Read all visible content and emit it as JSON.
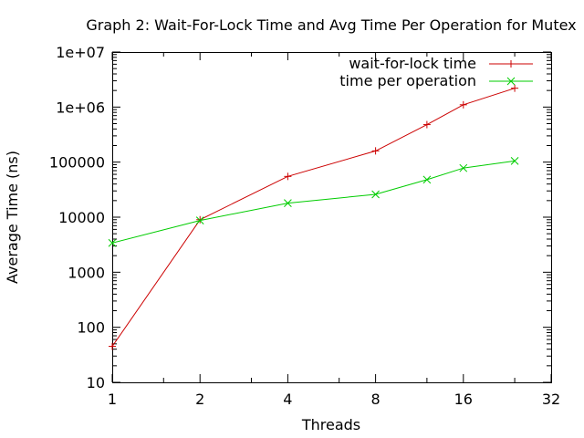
{
  "chart_data": {
    "type": "line",
    "title": "Graph 2: Wait-For-Lock Time and Avg Time Per Operation for Mutex",
    "xlabel": "Threads",
    "ylabel": "Average Time (ns)",
    "xscale": "log2",
    "yscale": "log10",
    "xlim": [
      1,
      32
    ],
    "ylim": [
      10,
      10000000
    ],
    "xticks": [
      1,
      2,
      4,
      8,
      16,
      32
    ],
    "xtick_labels": [
      "1",
      "2",
      "4",
      "8",
      "16",
      "32"
    ],
    "yticks": [
      10,
      100,
      1000,
      10000,
      100000,
      1000000,
      10000000
    ],
    "ytick_labels": [
      "10",
      "100",
      "1000",
      "10000",
      "100000",
      "1e+06",
      "1e+07"
    ],
    "grid": false,
    "legend_position": "top-right",
    "series": [
      {
        "name": "wait-for-lock time",
        "color": "#cc0000",
        "marker": "plus",
        "x": [
          1,
          2,
          4,
          8,
          12,
          16,
          24
        ],
        "y": [
          45,
          9000,
          55000,
          160000,
          480000,
          1100000,
          2200000
        ]
      },
      {
        "name": "time per operation",
        "color": "#00cc00",
        "marker": "cross",
        "x": [
          1,
          2,
          4,
          8,
          12,
          16,
          24
        ],
        "y": [
          3400,
          8700,
          18000,
          26000,
          48000,
          78000,
          105000
        ]
      }
    ]
  }
}
